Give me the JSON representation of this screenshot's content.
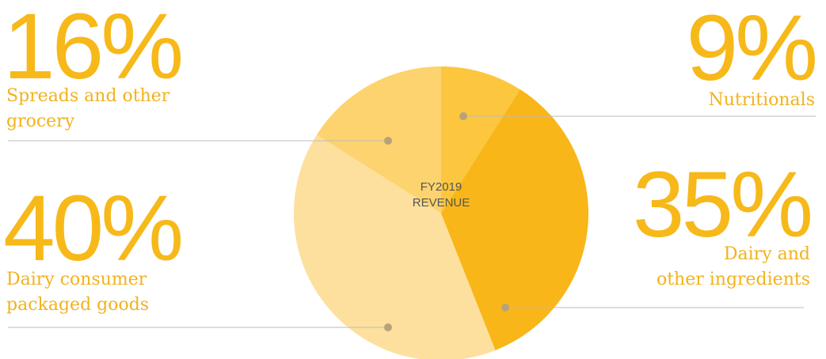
{
  "chart_data": {
    "type": "pie",
    "center_label": "FY2019\nREVENUE",
    "categories": [
      "Nutritionals",
      "Dairy and\nother ingredients",
      "Dairy consumer\npackaged goods",
      "Spreads and other\ngrocery"
    ],
    "values": [
      9,
      35,
      40,
      16
    ],
    "value_labels": [
      "9%",
      "35%",
      "40%",
      "16%"
    ],
    "colors": [
      "#fcc73f",
      "#f9b618",
      "#fde09d",
      "#fcd36f"
    ]
  }
}
